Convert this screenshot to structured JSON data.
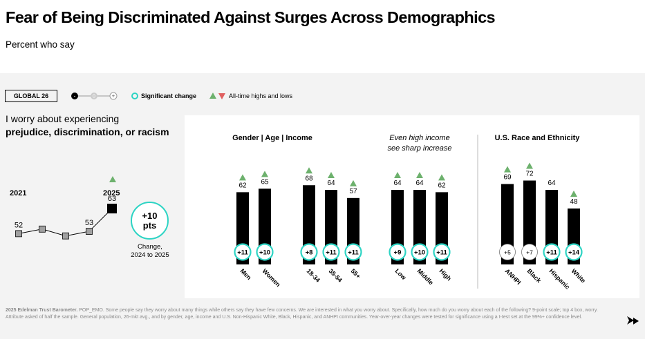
{
  "header": {
    "title": "Fear of Being Discriminated Against Surges Across Demographics",
    "subtitle": "Percent who say"
  },
  "controls": {
    "global_label": "GLOBAL 26",
    "slider_minus": "-",
    "slider_zero": "0",
    "slider_plus": "+",
    "legend_significant": "Significant change",
    "legend_alltime": "All-time highs and lows"
  },
  "question": {
    "line1": "I worry about experiencing",
    "line2": "prejudice, discrimination, or racism"
  },
  "trend": {
    "year_start": "2021",
    "year_end": "2025",
    "values": [
      52,
      54,
      51,
      53,
      63
    ],
    "value_labels": [
      "52",
      "",
      "",
      "53",
      "63"
    ],
    "change_value": "+10",
    "change_unit": "pts",
    "change_label_line1": "Change,",
    "change_label_line2": "2024 to 2025"
  },
  "chart_data": {
    "type": "bar",
    "y_range": [
      0,
      100
    ],
    "group_headers": [
      {
        "text": "Gender | Age | Income",
        "style": "bold"
      },
      {
        "text": "Even high income",
        "style": "italic"
      },
      {
        "text": "see sharp increase",
        "style": "italic"
      },
      {
        "text": "U.S. Race and Ethnicity",
        "style": "bold"
      }
    ],
    "categories": [
      "Men",
      "Women",
      "18-34",
      "35-54",
      "55+",
      "Low",
      "Middle",
      "High",
      "ANHPI",
      "Black",
      "Hispanic",
      "White"
    ],
    "values": [
      62,
      65,
      68,
      64,
      57,
      64,
      64,
      62,
      69,
      72,
      64,
      48
    ],
    "changes": [
      "+11",
      "+10",
      "+8",
      "+11",
      "+11",
      "+9",
      "+10",
      "+11",
      "+5",
      "+7",
      "+11",
      "+14"
    ],
    "significant": [
      true,
      true,
      true,
      true,
      true,
      true,
      true,
      true,
      false,
      false,
      true,
      true
    ],
    "all_time_high": [
      true,
      true,
      true,
      true,
      true,
      true,
      true,
      true,
      true,
      true,
      false,
      true
    ]
  },
  "footnote": {
    "source": "2025 Edelman Trust Barometer.",
    "text": "POP_EMO. Some people say they worry about many things while others say they have few concerns. We are interested in what you worry about. Specifically, how much do you worry about each of the following? 9-point scale; top 4 box, worry. Attribute asked of half the sample. General population, 26-mkt avg., and by gender, age, income and U.S. Non-Hispanic White, Black, Hispanic, and ANHPI communities. Year-over-year changes were tested for significance using a t-test set at the 99%+ confidence level."
  },
  "colors": {
    "bar": "#000000",
    "significant_ring": "#2dd4c4",
    "high_triangle": "#6db16d",
    "low_triangle": "#e06060",
    "panel_bg": "#f3f3f3",
    "trend_marker": "#a0a0a0"
  },
  "icons": {
    "next": "arrow-down-right-icon",
    "legend_ring": "ring-icon",
    "legend_up": "triangle-up-icon",
    "legend_down": "triangle-down-icon"
  }
}
